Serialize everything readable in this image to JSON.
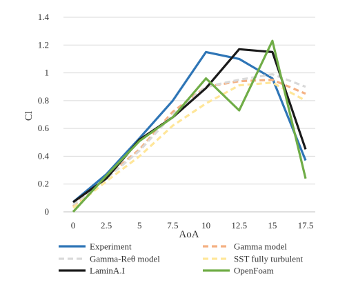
{
  "chart_data": {
    "type": "line",
    "xlabel": "AoA",
    "ylabel": "Cl",
    "categories": [
      "0",
      "2.5",
      "5",
      "7.5",
      "10",
      "12.5",
      "15",
      "17.5"
    ],
    "x": [
      0,
      2.5,
      5,
      7.5,
      10,
      12.5,
      15,
      17.5
    ],
    "ylim": [
      0,
      1.4
    ],
    "yticks": [
      "0",
      "0.2",
      "0.4",
      "0.6",
      "0.8",
      "1",
      "1.2",
      "1.4"
    ],
    "grid": true,
    "legend_position": "bottom",
    "series": [
      {
        "name": "Experiment",
        "color": "#2e75b6",
        "dash": "solid",
        "values": [
          0.07,
          0.27,
          0.53,
          0.8,
          1.15,
          1.1,
          0.96,
          0.37
        ]
      },
      {
        "name": "Gamma model",
        "color": "#f4b183",
        "dash": "dashed",
        "values": [
          0.04,
          0.25,
          0.45,
          0.72,
          0.9,
          0.94,
          0.95,
          0.85
        ]
      },
      {
        "name": "Gamma-Reθ model",
        "color": "#d9d9d9",
        "dash": "dashed",
        "values": [
          0.05,
          0.24,
          0.44,
          0.7,
          0.9,
          0.95,
          0.99,
          0.9
        ]
      },
      {
        "name": "SST fully turbulent",
        "color": "#ffe699",
        "dash": "dashed",
        "values": [
          0.03,
          0.22,
          0.4,
          0.62,
          0.78,
          0.91,
          0.93,
          0.8
        ]
      },
      {
        "name": "LaminA.I",
        "color": "#1a1a1a",
        "dash": "solid",
        "values": [
          0.07,
          0.24,
          0.52,
          0.68,
          0.89,
          1.17,
          1.15,
          0.45
        ]
      },
      {
        "name": "OpenFoam",
        "color": "#70ad47",
        "dash": "solid",
        "values": [
          0.0,
          0.26,
          0.51,
          0.68,
          0.96,
          0.73,
          1.23,
          0.24
        ]
      }
    ]
  }
}
